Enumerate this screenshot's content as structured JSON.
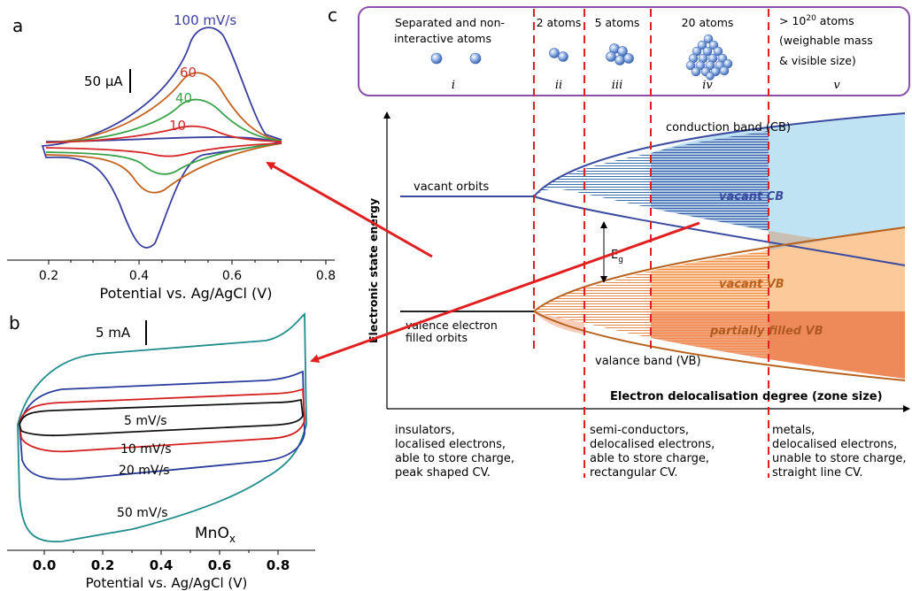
{
  "panel_a": {
    "letter": "a",
    "scale_bar": "50 μA",
    "xlabel": "Potential vs. Ag/AgCl (V)",
    "ticks": [
      "0.2",
      "0.4",
      "0.6",
      "0.8"
    ],
    "curve_labels": [
      {
        "text": "100 mV/s",
        "color": "#3b3f9e"
      },
      {
        "text": "60",
        "color": "#c0392b"
      },
      {
        "text": "40",
        "color": "#3aa34a"
      },
      {
        "text": "10",
        "color": "#d62828"
      }
    ]
  },
  "panel_b": {
    "letter": "b",
    "scale_bar": "5 mA",
    "xlabel": "Potential vs. Ag/AgCl (V)",
    "ticks": [
      "0.0",
      "0.2",
      "0.4",
      "0.6",
      "0.8"
    ],
    "material": "MnO",
    "material_sub": "x",
    "curve_labels": [
      "5 mV/s",
      "10 mV/s",
      "20 mV/s",
      "50 mV/s"
    ]
  },
  "panel_c": {
    "letter": "c",
    "zones": [
      {
        "title": "Separated and non-interactive atoms",
        "title_l1": "Separated and non-",
        "title_l2": "interactive atoms",
        "numeral": "i"
      },
      {
        "title": "2 atoms",
        "numeral": "ii"
      },
      {
        "title": "5 atoms",
        "numeral": "iii"
      },
      {
        "title": "20 atoms",
        "numeral": "iv"
      },
      {
        "title_l1": "> 10",
        "title_sup": "20",
        "title_l1b": " atoms",
        "title_l2": "(weighable mass",
        "title_l3": "& visible size)",
        "numeral": "v"
      }
    ],
    "yaxis_label": "Electronic state energy",
    "xaxis_label": "Electron delocalisation degree (zone size)",
    "conduction_band": "conduction band (CB)",
    "vacant_orbits": "vacant orbits",
    "vacant_cb": "vacant CB",
    "eg_label": "E",
    "eg_sub": "g",
    "vacant_vb": "vacant VB",
    "partially_filled_vb": "partially filled VB",
    "valence_filled_l1": "valence electron",
    "valence_filled_l2": "filled orbits",
    "valance_band": "valance band (VB)",
    "bottom_groups": [
      {
        "lines": [
          "insulators,",
          "localised electrons,",
          "able to store charge,",
          "peak shaped CV."
        ]
      },
      {
        "lines": [
          "semi-conductors,",
          "delocalised electrons,",
          "able to store charge,",
          "rectangular CV."
        ]
      },
      {
        "lines": [
          "metals,",
          "delocalised electrons,",
          "unable to store charge,",
          "straight line CV."
        ]
      }
    ]
  },
  "colors": {
    "arrow": "#e02020",
    "dashed": "#e02020",
    "box_border": "#8a4fa8",
    "cb_fill": "#bfe3f2",
    "cb_line": "#3a4ba0",
    "vb_light": "#fbc99a",
    "vb_dark": "#ee8a5a",
    "vb_line": "#b8621e",
    "grey": "#c9bfb2"
  }
}
